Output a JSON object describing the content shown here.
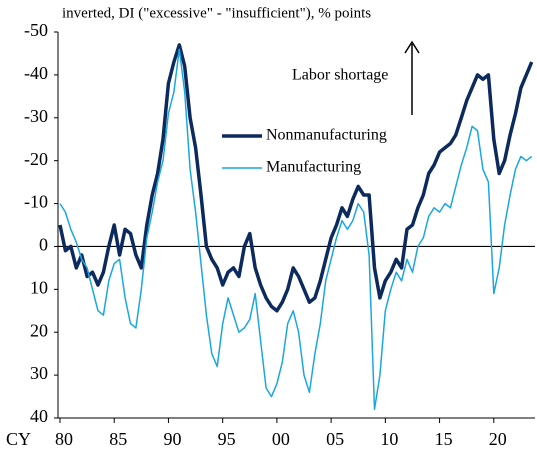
{
  "chart_data": {
    "type": "line",
    "title": "inverted, DI (\"excessive\" - \"insufficient\"), % points",
    "x_label": "CY",
    "annotation": "Labor shortage",
    "y_inverted": true,
    "legend": "center",
    "x": [
      1980,
      1980.5,
      1981,
      1981.5,
      1982,
      1982.5,
      1983,
      1983.5,
      1984,
      1984.5,
      1985,
      1985.5,
      1986,
      1986.5,
      1987,
      1987.5,
      1988,
      1988.5,
      1989,
      1989.5,
      1990,
      1990.5,
      1991,
      1991.5,
      1992,
      1992.5,
      1993,
      1993.5,
      1994,
      1994.5,
      1995,
      1995.5,
      1996,
      1996.5,
      1997,
      1997.5,
      1998,
      1998.5,
      1999,
      1999.5,
      2000,
      2000.5,
      2001,
      2001.5,
      2002,
      2002.5,
      2003,
      2003.5,
      2004,
      2004.5,
      2005,
      2005.5,
      2006,
      2006.5,
      2007,
      2007.5,
      2008,
      2008.5,
      2009,
      2009.5,
      2010,
      2010.5,
      2011,
      2011.5,
      2012,
      2012.5,
      2013,
      2013.5,
      2014,
      2014.5,
      2015,
      2015.5,
      2016,
      2016.5,
      2017,
      2017.5,
      2018,
      2018.5,
      2019,
      2019.5,
      2020,
      2020.5,
      2021,
      2021.5,
      2022,
      2022.5,
      2023,
      2023.5
    ],
    "series": [
      {
        "name": "Nonmanufacturing",
        "color": "#0d2a5e",
        "width": 3.5,
        "values": [
          -5,
          1,
          0,
          5,
          2,
          7,
          6,
          9,
          6,
          0,
          -5,
          2,
          -4,
          -3,
          2,
          5,
          -5,
          -12,
          -17,
          -25,
          -38,
          -43,
          -47,
          -42,
          -30,
          -23,
          -12,
          0,
          3,
          5,
          9,
          6,
          5,
          7,
          0,
          -3,
          5,
          9,
          12,
          14,
          15,
          13,
          10,
          5,
          7,
          10,
          13,
          12,
          8,
          3,
          -2,
          -5,
          -9,
          -7,
          -11,
          -14,
          -12,
          -12,
          5,
          12,
          8,
          6,
          3,
          5,
          -4,
          -5,
          -9,
          -12,
          -17,
          -19,
          -22,
          -23,
          -24,
          -26,
          -30,
          -34,
          -37,
          -40,
          -39,
          -40,
          -25,
          -17,
          -20,
          -26,
          -31,
          -37,
          -40,
          -43
        ]
      },
      {
        "name": "Manufacturing",
        "color": "#1aa7e0",
        "width": 1.5,
        "values": [
          -10,
          -8,
          -4,
          -1,
          3,
          5,
          10,
          15,
          16,
          8,
          4,
          3,
          12,
          18,
          19,
          10,
          -2,
          -8,
          -15,
          -20,
          -31,
          -36,
          -46,
          -36,
          -18,
          -8,
          4,
          16,
          25,
          28,
          18,
          12,
          16,
          20,
          19,
          17,
          11,
          22,
          33,
          35,
          32,
          27,
          18,
          15,
          20,
          30,
          34,
          25,
          18,
          8,
          3,
          -2,
          -6,
          -4,
          -6,
          -10,
          -8,
          2,
          38,
          30,
          15,
          10,
          6,
          8,
          3,
          6,
          0,
          -2,
          -7,
          -9,
          -8,
          -10,
          -9,
          -14,
          -19,
          -23,
          -28,
          -27,
          -18,
          -15,
          11,
          5,
          -5,
          -12,
          -18,
          -21,
          -20,
          -21
        ]
      }
    ],
    "xlim": [
      1980,
      2023.8
    ],
    "xticks": [
      {
        "value": 1980,
        "label": "80"
      },
      {
        "value": 1985,
        "label": "85"
      },
      {
        "value": 1990,
        "label": "90"
      },
      {
        "value": 1995,
        "label": "95"
      },
      {
        "value": 2000,
        "label": "00"
      },
      {
        "value": 2005,
        "label": "05"
      },
      {
        "value": 2010,
        "label": "10"
      },
      {
        "value": 2015,
        "label": "15"
      },
      {
        "value": 2020,
        "label": "20"
      }
    ],
    "ylim": [
      -50,
      40
    ],
    "yticks": [
      -50,
      -40,
      -30,
      -20,
      -10,
      0,
      10,
      20,
      30,
      40
    ]
  }
}
